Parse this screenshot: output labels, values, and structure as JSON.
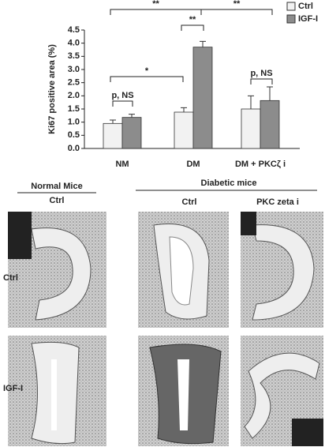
{
  "chart_data": {
    "type": "bar",
    "ylabel": "Ki67 positive area (%)",
    "categories": [
      "NM",
      "DM",
      "DM + PKCζ i"
    ],
    "series": [
      {
        "name": "Ctrl",
        "color": "#f2f2f2",
        "values": [
          0.95,
          1.38,
          1.5
        ],
        "errors": [
          0.13,
          0.17,
          0.5
        ]
      },
      {
        "name": "IGF-I",
        "color": "#8c8c8c",
        "values": [
          1.18,
          3.85,
          1.82
        ],
        "errors": [
          0.12,
          0.22,
          0.52
        ]
      }
    ],
    "ylim": [
      0,
      4.5
    ],
    "yticks": [
      {
        "value": 0,
        "label": "0.0"
      },
      0.5,
      {
        "value": 1,
        "label": "1.0"
      },
      1.5,
      {
        "value": 2,
        "label": "2.0"
      },
      2.5,
      {
        "value": 3,
        "label": "3.0"
      },
      3.5,
      {
        "value": 4,
        "label": "4.0"
      },
      4.5
    ],
    "annotations": [
      "**",
      "**",
      "**",
      "*",
      "p, NS",
      "p, NS"
    ],
    "legend": "top-right"
  },
  "panels": {
    "column_groups": [
      "Normal Mice",
      "Diabetic mice"
    ],
    "columns": [
      "Ctrl",
      "Ctrl",
      "PKC zeta i"
    ],
    "rows": [
      "Ctrl",
      "IGF-I"
    ]
  }
}
